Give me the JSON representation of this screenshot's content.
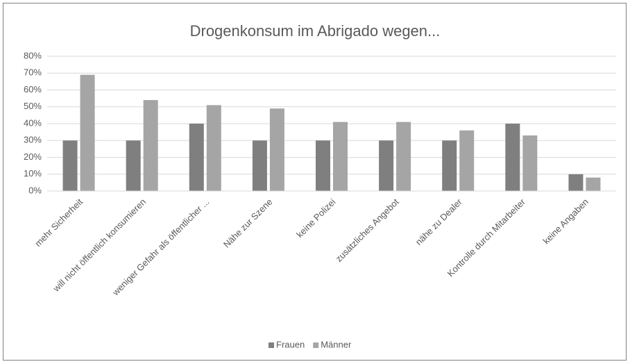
{
  "chart_data": {
    "type": "bar",
    "title": "Drogenkonsum im Abrigado wegen...",
    "categories": [
      "mehr Sicherheit",
      "will nicht öffentlich konsumieren",
      "weniger Gefahr als öffentlicher ...",
      "Nähe zur Szene",
      "keine Polizei",
      "zusätzliches Angebot",
      "nähe zu Dealer",
      "Kontrolle durch Mitarbeiter",
      "keine Angaben"
    ],
    "series": [
      {
        "name": "Frauen",
        "color": "#7f7f7f",
        "values": [
          30,
          30,
          40,
          30,
          30,
          30,
          30,
          40,
          10
        ]
      },
      {
        "name": "Männer",
        "color": "#a5a5a5",
        "values": [
          69,
          54,
          51,
          49,
          41,
          41,
          36,
          33,
          8
        ]
      }
    ],
    "ylim": [
      0,
      80
    ],
    "yticks": [
      {
        "value": 0,
        "label": "0%"
      },
      {
        "value": 10,
        "label": "10%"
      },
      {
        "value": 20,
        "label": "20%"
      },
      {
        "value": 30,
        "label": "30%"
      },
      {
        "value": 40,
        "label": "40%"
      },
      {
        "value": 50,
        "label": "50%"
      },
      {
        "value": 60,
        "label": "60%"
      },
      {
        "value": 70,
        "label": "70%"
      },
      {
        "value": 80,
        "label": "80%"
      }
    ],
    "grid": true,
    "legend": "bottom"
  }
}
